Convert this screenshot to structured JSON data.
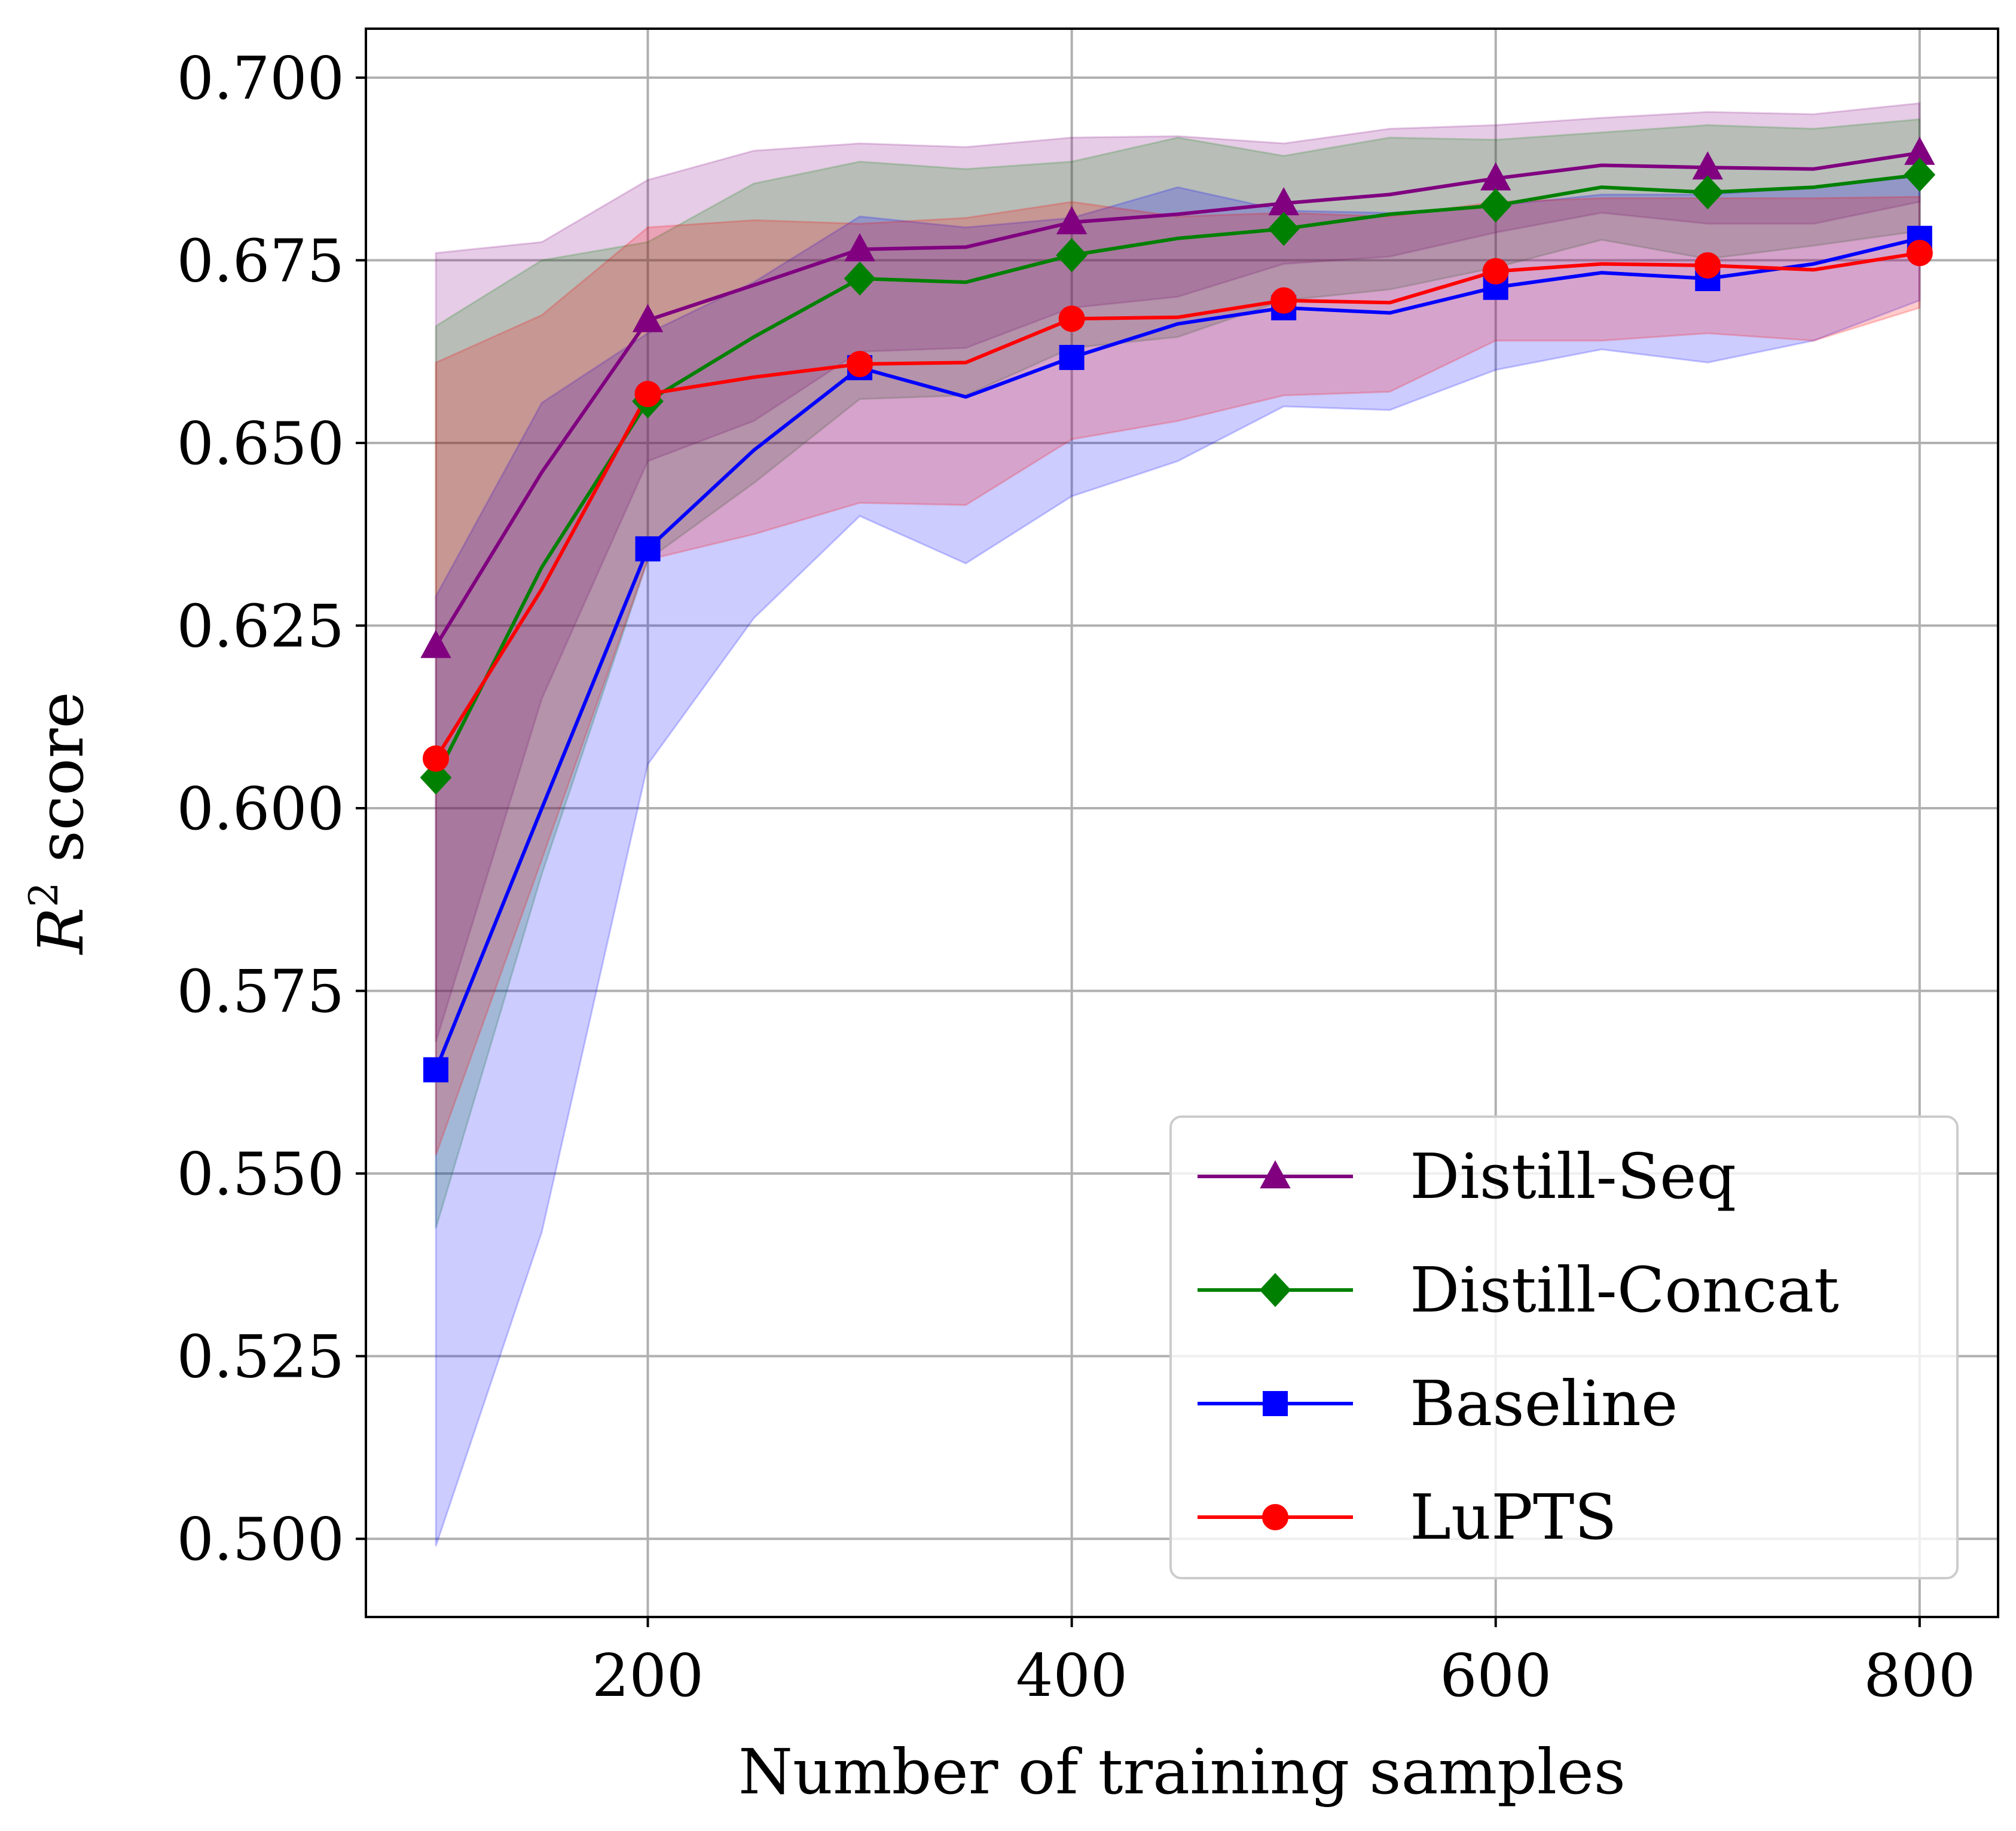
{
  "chart_data": {
    "type": "line",
    "title": "",
    "xlabel": "Number of training samples",
    "ylabel_symbol": "R",
    "ylabel_superscript": "2",
    "ylabel_text": " score",
    "xlim": [
      67,
      837
    ],
    "ylim": [
      0.4893,
      0.7067
    ],
    "xticks": [
      200,
      400,
      600,
      800
    ],
    "xtick_labels": [
      "200",
      "400",
      "600",
      "800"
    ],
    "yticks": [
      0.5,
      0.525,
      0.55,
      0.575,
      0.6,
      0.625,
      0.65,
      0.675,
      0.7
    ],
    "ytick_labels": [
      "0.500",
      "0.525",
      "0.550",
      "0.575",
      "0.600",
      "0.625",
      "0.650",
      "0.675",
      "0.700"
    ],
    "grid": true,
    "legend_position": "lower-right",
    "x": [
      100,
      150,
      200,
      250,
      300,
      350,
      400,
      450,
      500,
      550,
      600,
      650,
      700,
      750,
      800
    ],
    "series": [
      {
        "name": "Distill-Seq",
        "color": "#800080",
        "marker": "triangle",
        "marker_every": 2,
        "values": [
          0.6222,
          0.646,
          0.6668,
          0.6716,
          0.6765,
          0.6768,
          0.6802,
          0.6813,
          0.6828,
          0.684,
          0.6862,
          0.688,
          0.6877,
          0.6875,
          0.6897
        ],
        "upper": [
          0.676,
          0.6775,
          0.686,
          0.69,
          0.691,
          0.6905,
          0.6918,
          0.692,
          0.691,
          0.693,
          0.6935,
          0.6945,
          0.6953,
          0.695,
          0.6965
        ],
        "lower": [
          0.568,
          0.615,
          0.6475,
          0.653,
          0.6625,
          0.663,
          0.6685,
          0.67,
          0.6745,
          0.6755,
          0.6788,
          0.6815,
          0.68,
          0.68,
          0.683
        ]
      },
      {
        "name": "Distill-Concat",
        "color": "#008000",
        "marker": "diamond",
        "marker_every": 2,
        "values": [
          0.6042,
          0.633,
          0.6557,
          0.6645,
          0.6725,
          0.672,
          0.6757,
          0.678,
          0.6793,
          0.6813,
          0.6825,
          0.685,
          0.6843,
          0.685,
          0.6867
        ],
        "upper": [
          0.666,
          0.675,
          0.6775,
          0.6855,
          0.6885,
          0.6875,
          0.6885,
          0.6918,
          0.6893,
          0.6918,
          0.6915,
          0.6925,
          0.6935,
          0.693,
          0.6943
        ],
        "lower": [
          0.5425,
          0.591,
          0.634,
          0.6445,
          0.656,
          0.6565,
          0.663,
          0.6645,
          0.6695,
          0.671,
          0.674,
          0.6778,
          0.6752,
          0.677,
          0.679
        ]
      },
      {
        "name": "Baseline",
        "color": "#0000ff",
        "marker": "square",
        "marker_every": 2,
        "values": [
          0.5642,
          0.6,
          0.6355,
          0.649,
          0.6603,
          0.6563,
          0.6617,
          0.6663,
          0.6685,
          0.6678,
          0.6713,
          0.6733,
          0.6725,
          0.6745,
          0.678
        ],
        "upper": [
          0.629,
          0.6555,
          0.665,
          0.672,
          0.681,
          0.6795,
          0.6808,
          0.685,
          0.6818,
          0.6815,
          0.6825,
          0.684,
          0.684,
          0.685,
          0.6865
        ],
        "lower": [
          0.499,
          0.542,
          0.606,
          0.626,
          0.64,
          0.6335,
          0.6427,
          0.6475,
          0.655,
          0.6545,
          0.66,
          0.6628,
          0.661,
          0.664,
          0.6695
        ]
      },
      {
        "name": "LuPTS",
        "color": "#ff0000",
        "marker": "circle",
        "marker_every": 2,
        "values": [
          0.6068,
          0.63,
          0.6567,
          0.659,
          0.6608,
          0.661,
          0.667,
          0.6672,
          0.6695,
          0.6692,
          0.6735,
          0.6745,
          0.6743,
          0.6737,
          0.676
        ],
        "upper": [
          0.661,
          0.6675,
          0.6795,
          0.6805,
          0.68,
          0.6808,
          0.683,
          0.681,
          0.6815,
          0.681,
          0.683,
          0.6835,
          0.6835,
          0.6835,
          0.6837
        ],
        "lower": [
          0.5525,
          0.593,
          0.634,
          0.6375,
          0.6418,
          0.6415,
          0.6505,
          0.653,
          0.6565,
          0.657,
          0.664,
          0.664,
          0.665,
          0.664,
          0.6685
        ]
      }
    ]
  }
}
